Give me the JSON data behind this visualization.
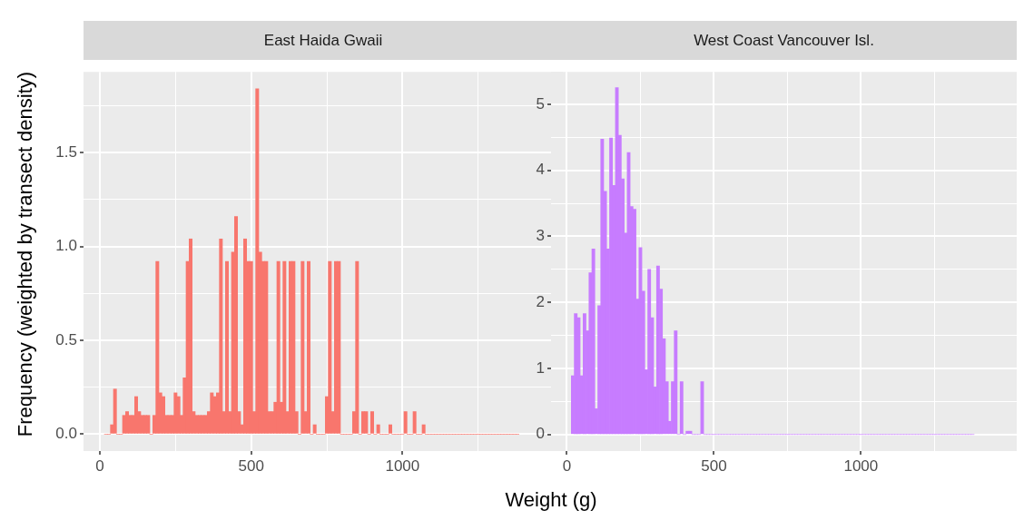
{
  "chart_data": [
    {
      "type": "histogram",
      "title": "East Haida Gwaii",
      "xlabel": "Weight (g)",
      "ylabel": "Frequency (weighted by transect density)",
      "color": "#f8766d",
      "grid": true,
      "legend": false,
      "xlim": [
        -54,
        1530
      ],
      "ylim": [
        -0.09,
        1.93
      ],
      "xticks": [
        0,
        {
          "value": 250,
          "label": null
        },
        500,
        {
          "value": 750,
          "label": null
        },
        1000,
        {
          "value": 1250,
          "label": null
        }
      ],
      "yticks": [
        {
          "value": 0,
          "label": "0.0"
        },
        {
          "value": 0.25,
          "label": null
        },
        {
          "value": 0.5,
          "label": "0.5"
        },
        {
          "value": 0.75,
          "label": null
        },
        {
          "value": 1,
          "label": "1.0"
        },
        {
          "value": 1.25,
          "label": null
        },
        {
          "value": 1.5,
          "label": "1.5"
        },
        {
          "value": 1.75,
          "label": null
        }
      ],
      "bins": [
        15,
        25,
        35,
        45,
        55,
        65,
        75,
        85,
        95,
        105,
        115,
        125,
        135,
        145,
        155,
        165,
        175,
        185,
        195,
        205,
        215,
        225,
        235,
        245,
        255,
        265,
        275,
        285,
        295,
        305,
        315,
        325,
        335,
        345,
        355,
        365,
        375,
        385,
        395,
        405,
        415,
        425,
        435,
        445,
        455,
        465,
        475,
        485,
        495,
        505,
        515,
        525,
        535,
        545,
        555,
        565,
        575,
        585,
        595,
        605,
        615,
        625,
        635,
        645,
        655,
        665,
        675,
        685,
        695,
        705,
        715,
        725,
        735,
        745,
        755,
        765,
        775,
        785,
        795,
        805,
        815,
        825,
        835,
        845,
        855,
        865,
        875,
        885,
        895,
        905,
        915,
        925,
        935,
        945,
        955,
        965,
        975,
        985,
        995,
        1005,
        1015,
        1025,
        1035,
        1045,
        1055,
        1065,
        1075,
        1085,
        1095,
        1105,
        1115,
        1125,
        1135,
        1145,
        1155,
        1165,
        1175,
        1185,
        1195,
        1205,
        1215,
        1225,
        1235,
        1245,
        1255,
        1265,
        1275,
        1285,
        1295,
        1305,
        1315,
        1325,
        1335,
        1345,
        1355,
        1365,
        1375,
        1385
      ],
      "values": [
        0,
        0,
        0.05,
        0.24,
        0,
        0,
        0.1,
        0.12,
        0.1,
        0.1,
        0.2,
        0.12,
        0.1,
        0.1,
        0.1,
        0,
        0.1,
        0.92,
        0.22,
        0.2,
        0.1,
        0.1,
        0.1,
        0.22,
        0.2,
        0.1,
        0.3,
        0.92,
        1.04,
        0.12,
        0.1,
        0.1,
        0.1,
        0.1,
        0.12,
        0.22,
        0.2,
        0.22,
        1.04,
        0.12,
        0.92,
        0.12,
        0.97,
        1.16,
        0.12,
        0.05,
        1.04,
        0.92,
        0.92,
        0.12,
        1.84,
        0.97,
        0.92,
        0.92,
        0.12,
        0.12,
        0.17,
        0.92,
        0.17,
        0.92,
        0.12,
        0.92,
        0.92,
        0.12,
        0,
        0.92,
        0.12,
        0.92,
        0,
        0.05,
        0,
        0,
        0,
        0.2,
        0.92,
        0.12,
        0.92,
        0.92,
        0,
        0,
        0,
        0,
        0.12,
        0.92,
        0,
        0.12,
        0.12,
        0,
        0.12,
        0,
        0.05,
        0,
        0,
        0,
        0.05,
        0,
        0,
        0,
        0,
        0.12,
        0,
        0,
        0.12,
        0,
        0,
        0.05,
        0,
        0,
        0,
        0,
        0,
        0,
        0,
        0,
        0,
        0,
        0,
        0,
        0,
        0,
        0,
        0,
        0,
        0,
        0,
        0,
        0,
        0,
        0,
        0,
        0,
        0,
        0,
        0,
        0,
        0,
        0
      ]
    },
    {
      "type": "histogram",
      "title": "West Coast Vancouver Isl.",
      "color": "#c77cff",
      "grid": true,
      "legend": false,
      "xlim": [
        -54,
        1530
      ],
      "ylim": [
        -0.25,
        5.49
      ],
      "xticks": [
        0,
        {
          "value": 250,
          "label": null
        },
        500,
        {
          "value": 750,
          "label": null
        },
        1000,
        {
          "value": 1250,
          "label": null
        }
      ],
      "yticks": [
        0,
        {
          "value": 0.5,
          "label": null
        },
        1,
        {
          "value": 1.5,
          "label": null
        },
        2,
        {
          "value": 2.5,
          "label": null
        },
        3,
        {
          "value": 3.5,
          "label": null
        },
        4,
        {
          "value": 4.5,
          "label": null
        },
        5
      ],
      "bins": [
        15,
        25,
        35,
        45,
        55,
        65,
        75,
        85,
        95,
        105,
        115,
        125,
        135,
        145,
        155,
        165,
        175,
        185,
        195,
        205,
        215,
        225,
        235,
        245,
        255,
        265,
        275,
        285,
        295,
        305,
        315,
        325,
        335,
        345,
        355,
        365,
        375,
        385,
        395,
        405,
        415,
        425,
        435,
        445,
        455,
        465,
        475,
        485,
        495,
        505,
        515,
        525,
        535,
        545,
        555,
        565,
        575,
        585,
        595,
        605,
        615,
        625,
        635,
        645,
        655,
        665,
        675,
        685,
        695,
        705,
        715,
        725,
        735,
        745,
        755,
        765,
        775,
        785,
        795,
        805,
        815,
        825,
        835,
        845,
        855,
        865,
        875,
        885,
        895,
        905,
        915,
        925,
        935,
        945,
        955,
        965,
        975,
        985,
        995,
        1005,
        1015,
        1025,
        1035,
        1045,
        1055,
        1065,
        1075,
        1085,
        1095,
        1105,
        1115,
        1125,
        1135,
        1145,
        1155,
        1165,
        1175,
        1185,
        1195,
        1205,
        1215,
        1225,
        1235,
        1245,
        1255,
        1265,
        1275,
        1285,
        1295,
        1305,
        1315,
        1325,
        1335,
        1345,
        1355,
        1365,
        1375,
        1385
      ],
      "values": [
        0.89,
        1.83,
        1.77,
        0.89,
        1.83,
        1.57,
        2.45,
        2.81,
        0.39,
        1.95,
        4.47,
        3.68,
        2.81,
        4.49,
        3.77,
        5.25,
        4.53,
        3.87,
        3.05,
        4.27,
        3.45,
        3.41,
        2.05,
        2.83,
        2.17,
        0.98,
        2.5,
        1.77,
        0.72,
        2.55,
        2.2,
        1.45,
        0.8,
        0.2,
        0.8,
        1.57,
        0,
        0.8,
        0,
        0.05,
        0.05,
        0,
        0,
        0,
        0.8,
        0,
        0,
        0,
        0,
        0,
        0,
        0,
        0,
        0,
        0,
        0,
        0,
        0,
        0,
        0,
        0,
        0,
        0,
        0,
        0,
        0,
        0,
        0,
        0,
        0,
        0,
        0,
        0,
        0,
        0,
        0,
        0,
        0,
        0,
        0,
        0,
        0,
        0,
        0,
        0,
        0,
        0,
        0,
        0,
        0,
        0,
        0,
        0,
        0,
        0,
        0,
        0,
        0,
        0,
        0,
        0,
        0,
        0,
        0,
        0,
        0,
        0,
        0,
        0,
        0,
        0,
        0,
        0,
        0,
        0,
        0,
        0,
        0,
        0,
        0,
        0,
        0,
        0,
        0,
        0,
        0,
        0,
        0,
        0,
        0,
        0,
        0,
        0,
        0,
        0,
        0,
        0
      ]
    }
  ]
}
